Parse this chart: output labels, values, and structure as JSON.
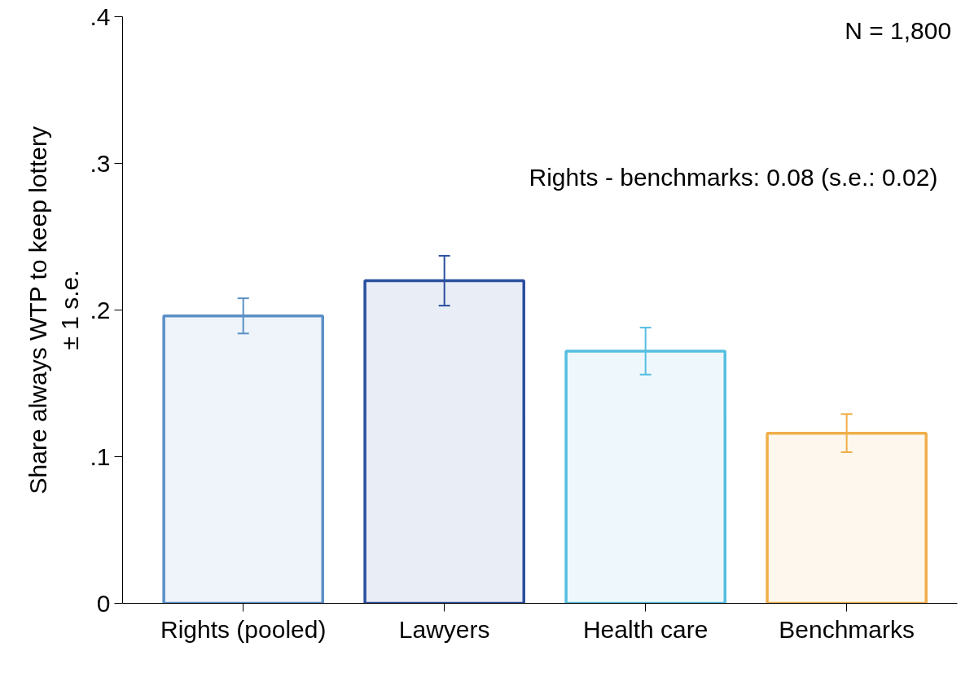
{
  "chart_data": {
    "type": "bar",
    "ylabel": "Share always WTP to keep lottery\n± 1 s.e.",
    "categories": [
      "Rights (pooled)",
      "Lawyers",
      "Health care",
      "Benchmarks"
    ],
    "values": [
      0.196,
      0.22,
      0.172,
      0.116
    ],
    "errors": [
      0.012,
      0.017,
      0.016,
      0.013
    ],
    "colors": [
      "#5b8fc7",
      "#2a4f9e",
      "#55bfe0",
      "#f0ae4a"
    ],
    "ylim": [
      0,
      0.4
    ],
    "yticks": [
      {
        "value": 0,
        "label": "0"
      },
      {
        "value": 0.1,
        "label": ".1"
      },
      {
        "value": 0.2,
        "label": ".2"
      },
      {
        "value": 0.3,
        "label": ".3"
      },
      {
        "value": 0.4,
        "label": ".4"
      }
    ],
    "annotations": [
      "N = 1,800",
      "Rights - benchmarks:  0.08 (s.e.:  0.02)"
    ],
    "grid": false
  }
}
